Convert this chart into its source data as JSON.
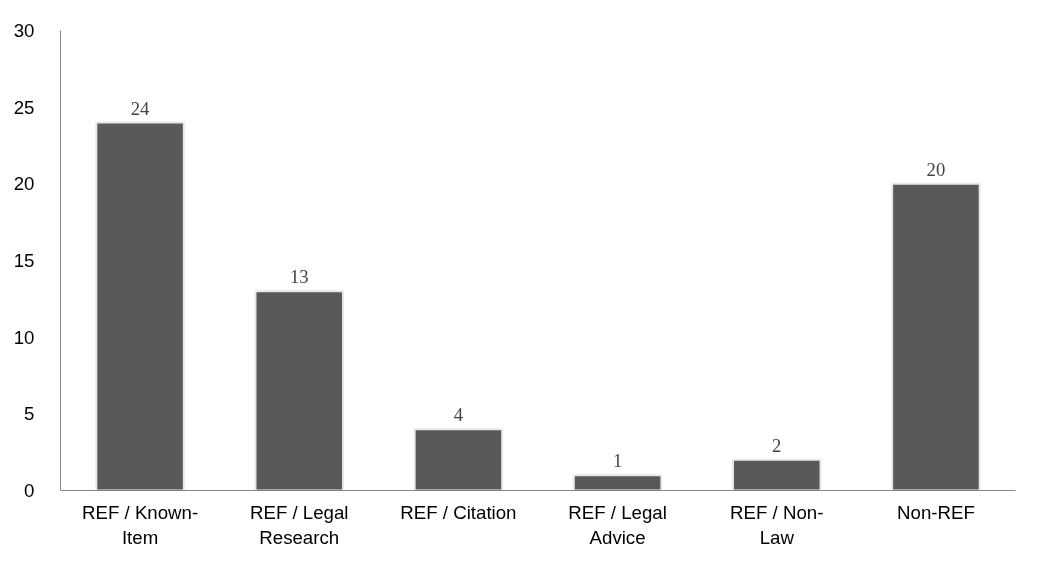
{
  "chart_data": {
    "type": "bar",
    "categories": [
      "REF / Known-\nItem",
      "REF / Legal\nResearch",
      "REF / Citation",
      "REF / Legal\nAdvice",
      "REF / Non-\nLaw",
      "Non-REF"
    ],
    "values": [
      24,
      13,
      4,
      1,
      2,
      20
    ],
    "color": "#595959",
    "ylim": [
      0,
      30
    ],
    "yticks": [
      0,
      5,
      10,
      15,
      20,
      25,
      30
    ],
    "grid": false,
    "data_labels": true
  }
}
